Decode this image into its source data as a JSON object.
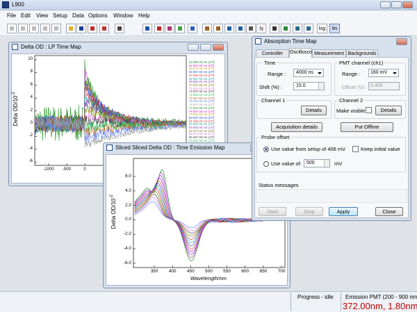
{
  "app": {
    "title": "L900"
  },
  "menu": [
    "File",
    "Edit",
    "View",
    "Setup",
    "Data",
    "Options",
    "Window",
    "Help"
  ],
  "toolbar": {
    "n": "N",
    "log": "log",
    "lin": "lin"
  },
  "time_map": {
    "title": "Delta OD : LP Time Map",
    "y_label": "Delta OD/10",
    "y_label_exp": "-2",
    "x_ticks": [
      "-1000",
      "-500",
      "0"
    ],
    "y_ticks": [
      "10",
      "8",
      "6",
      "4",
      "2",
      "0",
      "-2",
      "-4",
      "-6"
    ],
    "legend": [
      "63 882.00 nm (uTf)",
      "64 887.00 nm (uTf)",
      "65 872.00 nm (uTf)",
      "66 867.00 nm (uTf)",
      "67 862.00 nm (uTf)",
      "68 857.00 nm (uTf)",
      "69 852.00 nm (uTf)",
      "70 847.00 nm (uTf)",
      "71 842.00 nm (uTf)",
      "72 837.00 nm (uTf)",
      "73 832.00 nm (uTf)",
      "74 827.00 nm (uTf)",
      "75 822.00 nm (uTf)",
      "76 817.00 nm (uTf)",
      "77 812.00 nm (uTf)",
      "78 807.00 nm (uTf)",
      "79 802.00 nm (uTf)",
      "80 697.00 nm (uTf)",
      "81 692.00 nm (uTf)",
      "82 687.00 nm (uTf)",
      "83 682.00 nm (uTf)",
      "84 677.00 nm (uTf)",
      "85 672.00 nm (uTf)",
      "86 667.00 nm (uTf)",
      "87 662.00 nm (uTf)"
    ]
  },
  "emission_map": {
    "title": "Sliced Sliced Delta OD : Time Emission Map",
    "y_label": "Delta OD/10",
    "y_label_exp": "-2",
    "x_label": "Wavelength/nm",
    "x_ticks": [
      "350",
      "400",
      "450",
      "500",
      "550",
      "600",
      "650",
      "700"
    ],
    "y_ticks": [
      "6.0",
      "4.0",
      "2.0",
      "0.0",
      "-2.0",
      "-4.0",
      "-6.0"
    ]
  },
  "dialog": {
    "title": "Absorption Time Map",
    "tabs": [
      "Controller",
      "Oscilloscope",
      "Measurement",
      "Backgrounds"
    ],
    "time": {
      "heading": "Time",
      "range_label": "Range :",
      "range_value": "4000 ns",
      "shift_label": "Shift (%) :",
      "shift_value": "15.0"
    },
    "pmt": {
      "heading": "PMT channel (ch1)",
      "range_label": "Range :",
      "range_value": "160 mV",
      "offset_label": "Offset (V) :",
      "offset_value": "0.406"
    },
    "channel1": {
      "heading": "Channel 1",
      "details": "Details"
    },
    "channel2": {
      "heading": "Channel 2",
      "make_visible": "Make visible",
      "details": "Details"
    },
    "acquisition_details": "Acquisition details",
    "put_offline": "Put Offline",
    "probe_offset": {
      "heading": "Probe offset",
      "use_setup": "Use value from setup of 406 mV",
      "keep_initial": "Keep initial value",
      "use_value": "Use value of:",
      "value": "500",
      "unit": "mV"
    },
    "status_messages": "Status messages",
    "buttons": {
      "start": "Start",
      "stop": "Stop",
      "apply": "Apply",
      "close": "Close"
    }
  },
  "status": {
    "progress": "Progress - idle",
    "detector": "Emission PMT (200 - 900 nm)",
    "reading": "372.00nm, 1.80nm"
  }
}
